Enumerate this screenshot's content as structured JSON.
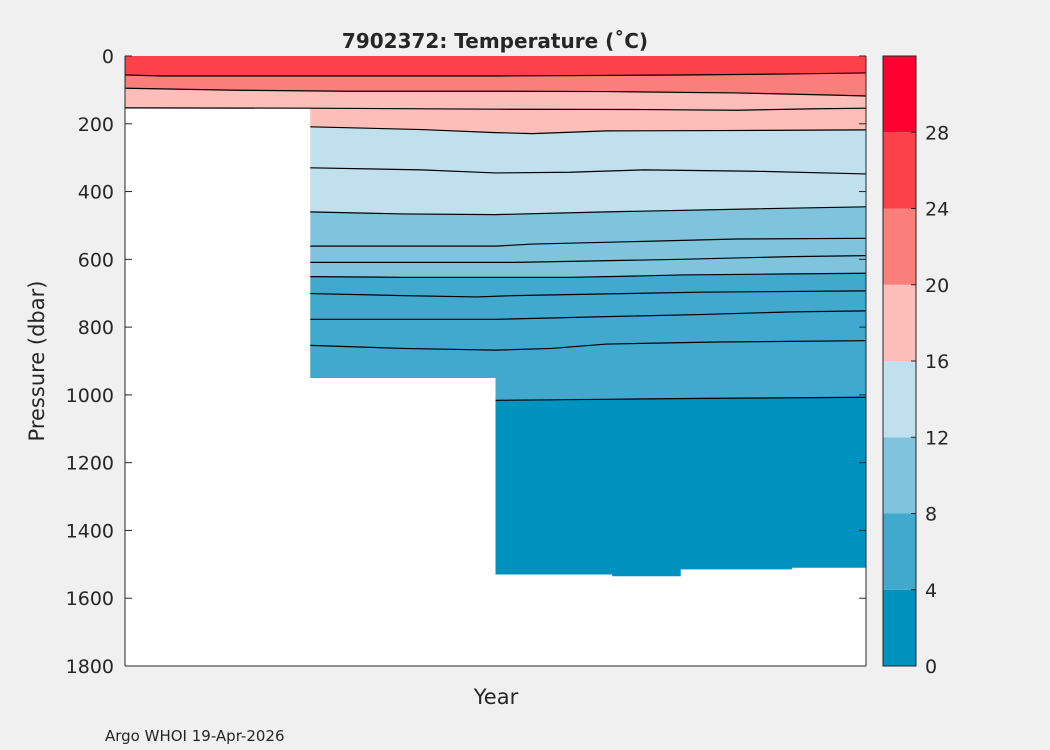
{
  "chart_data": {
    "type": "contour",
    "title": "7902372:  Temperature (˚C)",
    "xlabel": "Year",
    "ylabel": "Pressure (dbar)",
    "footer": "Argo WHOI 19-Apr-2026",
    "ylim": [
      0,
      1800
    ],
    "y_reversed": true,
    "yticks": [
      0,
      200,
      400,
      600,
      800,
      1000,
      1200,
      1400,
      1600,
      1800
    ],
    "xlim_profile_units": [
      0,
      40
    ],
    "colorbar": {
      "ticks": [
        0,
        4,
        8,
        12,
        16,
        20,
        24,
        28
      ],
      "range": [
        0,
        32
      ],
      "bands": [
        {
          "min": 0,
          "max": 4,
          "color": "#0092bf"
        },
        {
          "min": 4,
          "max": 8,
          "color": "#40a9cd"
        },
        {
          "min": 8,
          "max": 12,
          "color": "#7fc3dd"
        },
        {
          "min": 12,
          "max": 16,
          "color": "#bfe0ec"
        },
        {
          "min": 16,
          "max": 20,
          "color": "#fdbdb8"
        },
        {
          "min": 20,
          "max": 24,
          "color": "#fa7e7a"
        },
        {
          "min": 24,
          "max": 28,
          "color": "#fc414b"
        },
        {
          "min": 28,
          "max": 32,
          "color": "#ff0030"
        }
      ]
    },
    "surface_color": "#fc414b",
    "max_depth_profile": [
      [
        0,
        155
      ],
      [
        10,
        155
      ],
      [
        10,
        950
      ],
      [
        20,
        950
      ],
      [
        20,
        1530
      ],
      [
        26.3,
        1530
      ],
      [
        26.3,
        1535
      ],
      [
        30,
        1535
      ],
      [
        30,
        1515
      ],
      [
        36,
        1515
      ],
      [
        36,
        1510
      ],
      [
        40,
        1510
      ]
    ],
    "isotherms": [
      {
        "level": 24,
        "below_color": "#fa7e7a",
        "points": [
          [
            0,
            56
          ],
          [
            2,
            59
          ],
          [
            10,
            59
          ],
          [
            20,
            59
          ],
          [
            30,
            56
          ],
          [
            36,
            53
          ],
          [
            40,
            50
          ]
        ]
      },
      {
        "level": 20,
        "below_color": "#fdbdb8",
        "points": [
          [
            0,
            95
          ],
          [
            6,
            101
          ],
          [
            12,
            104
          ],
          [
            20,
            104
          ],
          [
            26,
            105
          ],
          [
            33,
            109
          ],
          [
            38,
            115
          ],
          [
            40,
            118
          ]
        ]
      },
      {
        "level": 18,
        "below_color": "#fdbdb8",
        "points": [
          [
            0,
            153
          ],
          [
            10,
            154
          ],
          [
            20,
            157
          ],
          [
            28,
            158
          ],
          [
            33,
            160
          ],
          [
            37,
            156
          ],
          [
            40,
            154
          ]
        ]
      },
      {
        "level": 16,
        "below_color": "#bfe0ec",
        "points": [
          [
            10,
            209
          ],
          [
            16,
            217
          ],
          [
            20,
            226
          ],
          [
            22,
            229
          ],
          [
            26,
            221
          ],
          [
            32,
            220
          ],
          [
            40,
            218
          ]
        ]
      },
      {
        "level": 14,
        "below_color": "#bfe0ec",
        "points": [
          [
            10,
            330
          ],
          [
            16,
            336
          ],
          [
            20,
            345
          ],
          [
            24,
            343
          ],
          [
            28,
            336
          ],
          [
            34,
            340
          ],
          [
            40,
            348
          ]
        ]
      },
      {
        "level": 12,
        "below_color": "#7fc3dd",
        "points": [
          [
            10,
            460
          ],
          [
            15,
            466
          ],
          [
            20,
            468
          ],
          [
            26,
            460
          ],
          [
            34,
            451
          ],
          [
            40,
            445
          ]
        ]
      },
      {
        "level": 11,
        "below_color": "#7fc3dd",
        "points": [
          [
            10,
            561
          ],
          [
            20,
            561
          ],
          [
            22,
            555
          ],
          [
            28,
            547
          ],
          [
            33,
            540
          ],
          [
            40,
            538
          ]
        ]
      },
      {
        "level": 10,
        "below_color": "#7fc3dd",
        "points": [
          [
            10,
            609
          ],
          [
            21,
            609
          ],
          [
            24,
            606
          ],
          [
            30,
            600
          ],
          [
            36,
            592
          ],
          [
            40,
            589
          ]
        ]
      },
      {
        "level": 8,
        "below_color": "#40a9cd",
        "points": [
          [
            10,
            651
          ],
          [
            15,
            653
          ],
          [
            24,
            653
          ],
          [
            27,
            650
          ],
          [
            30,
            646
          ],
          [
            36,
            643
          ],
          [
            40,
            641
          ]
        ]
      },
      {
        "level": 7,
        "below_color": "#40a9cd",
        "points": [
          [
            10,
            701
          ],
          [
            15,
            707
          ],
          [
            19,
            711
          ],
          [
            21,
            707
          ],
          [
            26,
            702
          ],
          [
            31,
            697
          ],
          [
            40,
            693
          ]
        ]
      },
      {
        "level": 6,
        "below_color": "#40a9cd",
        "points": [
          [
            10,
            777
          ],
          [
            20,
            777
          ],
          [
            26,
            769
          ],
          [
            31,
            763
          ],
          [
            36,
            755
          ],
          [
            40,
            752
          ]
        ]
      },
      {
        "level": 5,
        "below_color": "#40a9cd",
        "points": [
          [
            10,
            854
          ],
          [
            15,
            863
          ],
          [
            20,
            868
          ],
          [
            23,
            863
          ],
          [
            26,
            850
          ],
          [
            32,
            844
          ],
          [
            40,
            840
          ]
        ]
      },
      {
        "level": 4,
        "below_color": "#0092bf",
        "points": [
          [
            20,
            1016
          ],
          [
            26,
            1013
          ],
          [
            32,
            1010
          ],
          [
            40,
            1007
          ]
        ]
      }
    ]
  }
}
